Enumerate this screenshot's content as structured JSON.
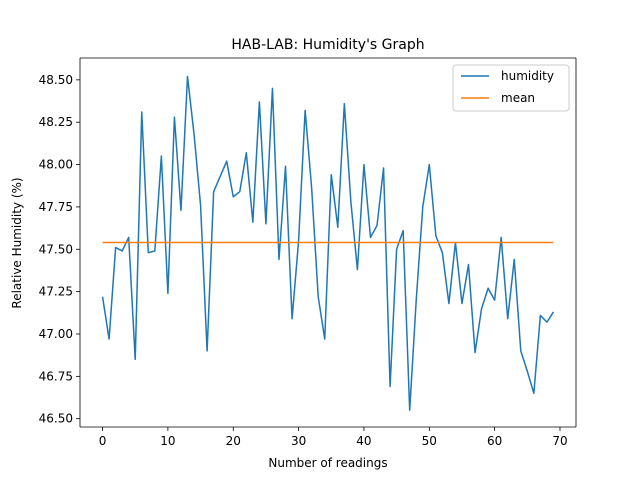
{
  "chart_data": {
    "type": "line",
    "title": "HAB-LAB: Humidity's Graph",
    "xlabel": "Number of readings",
    "ylabel": "Relative Humidity (%)",
    "xlim": [
      -3.45,
      72.45
    ],
    "ylim": [
      46.451,
      48.629
    ],
    "xticks": [
      0,
      10,
      20,
      30,
      40,
      50,
      60,
      70
    ],
    "xtick_labels": [
      "0",
      "10",
      "20",
      "30",
      "40",
      "50",
      "60",
      "70"
    ],
    "yticks": [
      46.5,
      46.75,
      47.0,
      47.25,
      47.5,
      47.75,
      48.0,
      48.25,
      48.5
    ],
    "ytick_labels": [
      "46.50",
      "46.75",
      "47.00",
      "47.25",
      "47.50",
      "47.75",
      "48.00",
      "48.25",
      "48.50"
    ],
    "grid": false,
    "legend_position": "top-right",
    "series": [
      {
        "name": "humidity",
        "color": "#1f77b4",
        "x": [
          0,
          1,
          2,
          3,
          4,
          5,
          6,
          7,
          8,
          9,
          10,
          11,
          12,
          13,
          14,
          15,
          16,
          17,
          18,
          19,
          20,
          21,
          22,
          23,
          24,
          25,
          26,
          27,
          28,
          29,
          30,
          31,
          32,
          33,
          34,
          35,
          36,
          37,
          38,
          39,
          40,
          41,
          42,
          43,
          44,
          45,
          46,
          47,
          48,
          49,
          50,
          51,
          52,
          53,
          54,
          55,
          56,
          57,
          58,
          59,
          60,
          61,
          62,
          63,
          64,
          65,
          66,
          67,
          68,
          69
        ],
        "values": [
          47.22,
          46.97,
          47.51,
          47.49,
          47.57,
          46.85,
          48.31,
          47.48,
          47.49,
          48.05,
          47.24,
          48.28,
          47.73,
          48.52,
          48.18,
          47.76,
          46.9,
          47.84,
          47.93,
          48.02,
          47.81,
          47.84,
          48.07,
          47.66,
          48.37,
          47.65,
          48.45,
          47.44,
          47.99,
          47.09,
          47.55,
          48.32,
          47.86,
          47.22,
          46.97,
          47.94,
          47.63,
          48.36,
          47.78,
          47.38,
          48.0,
          47.57,
          47.64,
          47.98,
          46.69,
          47.5,
          47.61,
          46.55,
          47.2,
          47.75,
          48.0,
          47.58,
          47.48,
          47.18,
          47.54,
          47.18,
          47.41,
          46.89,
          47.15,
          47.27,
          47.2,
          47.57,
          47.09,
          47.44,
          46.9,
          46.78,
          46.65,
          47.11,
          47.07,
          47.13
        ]
      },
      {
        "name": "mean",
        "color": "#ff7f0e",
        "x": [
          0,
          69
        ],
        "values": [
          47.54,
          47.54
        ]
      }
    ]
  }
}
